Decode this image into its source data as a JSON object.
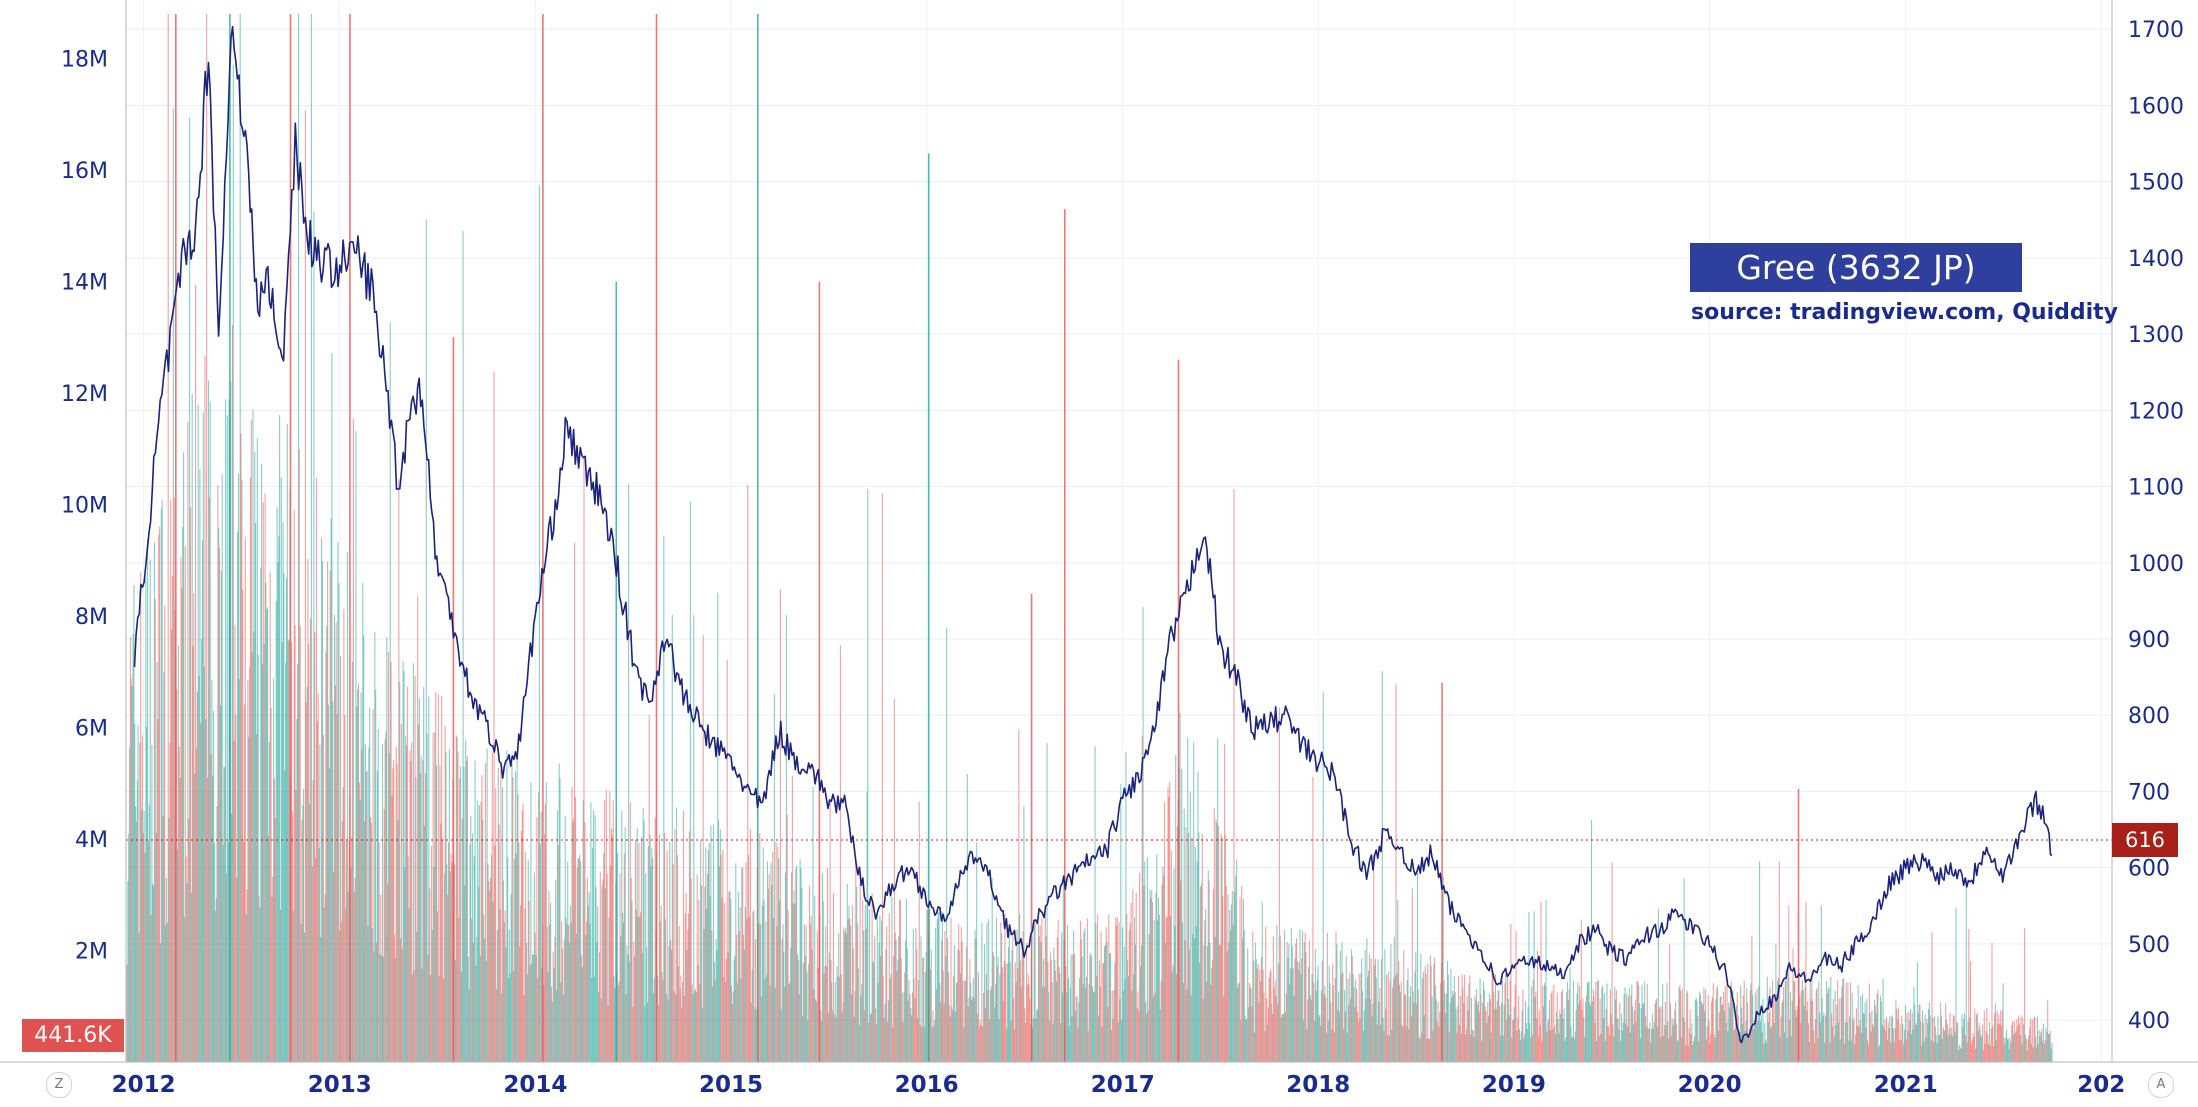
{
  "chart_data": {
    "type": "line",
    "title": "Gree (3632 JP)",
    "subtitle": "source: tradingview.com, Quiddity",
    "x_axis": {
      "type": "date",
      "ticks": [
        "2012",
        "2013",
        "2014",
        "2015",
        "2016",
        "2017",
        "2018",
        "2019",
        "2020",
        "2021",
        "202"
      ]
    },
    "price_axis": {
      "position": "right",
      "range": [
        345,
        1720
      ],
      "ticks": [
        "400",
        "500",
        "600",
        "700",
        "800",
        "900",
        "1000",
        "1100",
        "1200",
        "1300",
        "1400",
        "1500",
        "1600",
        "1700"
      ]
    },
    "volume_axis": {
      "position": "left",
      "range": [
        0,
        18800000
      ],
      "ticks": [
        "2M",
        "4M",
        "6M",
        "8M",
        "10M",
        "12M",
        "14M",
        "16M",
        "18M"
      ]
    },
    "series": [
      {
        "kind": "price",
        "points": [
          [
            "2011-12-15",
            870
          ],
          [
            "2012-02-01",
            1200
          ],
          [
            "2012-03-15",
            1400
          ],
          [
            "2012-04-10",
            1450
          ],
          [
            "2012-05-01",
            1680
          ],
          [
            "2012-05-20",
            1300
          ],
          [
            "2012-06-15",
            1720
          ],
          [
            "2012-07-15",
            1500
          ],
          [
            "2012-08-01",
            1330
          ],
          [
            "2012-08-20",
            1380
          ],
          [
            "2012-09-15",
            1250
          ],
          [
            "2012-10-10",
            1560
          ],
          [
            "2012-11-01",
            1430
          ],
          [
            "2012-12-01",
            1390
          ],
          [
            "2013-01-01",
            1390
          ],
          [
            "2013-02-01",
            1410
          ],
          [
            "2013-03-01",
            1360
          ],
          [
            "2013-04-01",
            1220
          ],
          [
            "2013-04-20",
            1100
          ],
          [
            "2013-05-15",
            1210
          ],
          [
            "2013-06-01",
            1230
          ],
          [
            "2013-07-01",
            1000
          ],
          [
            "2013-08-01",
            920
          ],
          [
            "2013-09-01",
            830
          ],
          [
            "2013-10-01",
            790
          ],
          [
            "2013-11-01",
            730
          ],
          [
            "2013-12-01",
            760
          ],
          [
            "2014-01-01",
            930
          ],
          [
            "2014-02-01",
            1050
          ],
          [
            "2014-03-01",
            1180
          ],
          [
            "2014-04-01",
            1120
          ],
          [
            "2014-05-01",
            1090
          ],
          [
            "2014-06-01",
            1000
          ],
          [
            "2014-07-01",
            880
          ],
          [
            "2014-08-01",
            810
          ],
          [
            "2014-09-01",
            910
          ],
          [
            "2014-10-01",
            830
          ],
          [
            "2014-11-01",
            790
          ],
          [
            "2014-12-01",
            760
          ],
          [
            "2015-01-01",
            740
          ],
          [
            "2015-02-01",
            700
          ],
          [
            "2015-03-01",
            680
          ],
          [
            "2015-04-01",
            780
          ],
          [
            "2015-05-01",
            740
          ],
          [
            "2015-06-01",
            730
          ],
          [
            "2015-07-01",
            690
          ],
          [
            "2015-08-01",
            680
          ],
          [
            "2015-09-01",
            580
          ],
          [
            "2015-10-01",
            540
          ],
          [
            "2015-11-01",
            580
          ],
          [
            "2015-12-01",
            600
          ],
          [
            "2016-01-01",
            560
          ],
          [
            "2016-02-01",
            530
          ],
          [
            "2016-03-01",
            580
          ],
          [
            "2016-04-01",
            620
          ],
          [
            "2016-05-01",
            580
          ],
          [
            "2016-06-01",
            520
          ],
          [
            "2016-07-01",
            490
          ],
          [
            "2016-08-01",
            540
          ],
          [
            "2016-09-01",
            570
          ],
          [
            "2016-10-01",
            590
          ],
          [
            "2016-11-01",
            610
          ],
          [
            "2016-12-01",
            620
          ],
          [
            "2017-01-01",
            690
          ],
          [
            "2017-02-01",
            720
          ],
          [
            "2017-03-01",
            780
          ],
          [
            "2017-04-01",
            900
          ],
          [
            "2017-05-01",
            960
          ],
          [
            "2017-06-01",
            1050
          ],
          [
            "2017-07-01",
            890
          ],
          [
            "2017-08-01",
            850
          ],
          [
            "2017-09-01",
            780
          ],
          [
            "2017-10-01",
            790
          ],
          [
            "2017-11-01",
            800
          ],
          [
            "2017-12-01",
            760
          ],
          [
            "2018-01-01",
            740
          ],
          [
            "2018-02-01",
            720
          ],
          [
            "2018-03-01",
            640
          ],
          [
            "2018-04-01",
            590
          ],
          [
            "2018-05-01",
            640
          ],
          [
            "2018-06-01",
            630
          ],
          [
            "2018-07-01",
            590
          ],
          [
            "2018-08-01",
            620
          ],
          [
            "2018-09-01",
            550
          ],
          [
            "2018-10-01",
            520
          ],
          [
            "2018-11-01",
            490
          ],
          [
            "2018-12-01",
            450
          ],
          [
            "2019-01-01",
            470
          ],
          [
            "2019-02-01",
            480
          ],
          [
            "2019-03-01",
            470
          ],
          [
            "2019-04-01",
            460
          ],
          [
            "2019-05-01",
            500
          ],
          [
            "2019-06-01",
            520
          ],
          [
            "2019-07-01",
            490
          ],
          [
            "2019-08-01",
            480
          ],
          [
            "2019-09-01",
            510
          ],
          [
            "2019-10-01",
            520
          ],
          [
            "2019-11-01",
            540
          ],
          [
            "2019-12-01",
            520
          ],
          [
            "2020-01-01",
            500
          ],
          [
            "2020-02-01",
            460
          ],
          [
            "2020-03-01",
            370
          ],
          [
            "2020-04-01",
            410
          ],
          [
            "2020-05-01",
            430
          ],
          [
            "2020-06-01",
            470
          ],
          [
            "2020-07-01",
            450
          ],
          [
            "2020-08-01",
            480
          ],
          [
            "2020-09-01",
            470
          ],
          [
            "2020-10-01",
            500
          ],
          [
            "2020-11-01",
            530
          ],
          [
            "2020-12-01",
            580
          ],
          [
            "2021-01-01",
            600
          ],
          [
            "2021-02-01",
            610
          ],
          [
            "2021-03-01",
            590
          ],
          [
            "2021-04-01",
            600
          ],
          [
            "2021-05-01",
            580
          ],
          [
            "2021-06-01",
            630
          ],
          [
            "2021-07-01",
            590
          ],
          [
            "2021-08-01",
            640
          ],
          [
            "2021-09-01",
            690
          ],
          [
            "2021-09-20",
            660
          ],
          [
            "2021-10-01",
            616
          ]
        ]
      },
      {
        "kind": "volume",
        "regimes": [
          [
            "2011-12-01",
            5000000
          ],
          [
            "2012-06-01",
            8000000
          ],
          [
            "2013-01-01",
            5500000
          ],
          [
            "2013-06-01",
            4000000
          ],
          [
            "2014-01-01",
            3000000
          ],
          [
            "2015-01-01",
            2500000
          ],
          [
            "2015-07-01",
            2000000
          ],
          [
            "2016-01-01",
            1600000
          ],
          [
            "2017-01-01",
            1500000
          ],
          [
            "2017-05-01",
            3500000
          ],
          [
            "2017-09-01",
            1500000
          ],
          [
            "2018-01-01",
            1400000
          ],
          [
            "2019-01-01",
            900000
          ],
          [
            "2020-01-01",
            800000
          ],
          [
            "2020-06-01",
            1000000
          ],
          [
            "2021-01-01",
            700000
          ],
          [
            "2021-10-01",
            441600
          ]
        ],
        "spikes": [
          [
            "2012-03-01",
            18800000,
            "down"
          ],
          [
            "2012-06-10",
            18800000,
            "up"
          ],
          [
            "2012-10-01",
            18800000,
            "down"
          ],
          [
            "2013-01-20",
            18800000,
            "down"
          ],
          [
            "2013-08-01",
            13000000,
            "down"
          ],
          [
            "2014-01-15",
            18800000,
            "down"
          ],
          [
            "2014-06-01",
            14000000,
            "up"
          ],
          [
            "2014-08-15",
            18800000,
            "down"
          ],
          [
            "2015-02-20",
            18800000,
            "up"
          ],
          [
            "2015-06-15",
            14000000,
            "down"
          ],
          [
            "2016-01-05",
            16300000,
            "up"
          ],
          [
            "2016-07-15",
            8400000,
            "down"
          ],
          [
            "2016-09-15",
            15300000,
            "down"
          ],
          [
            "2017-04-15",
            12600000,
            "down"
          ],
          [
            "2018-08-20",
            6800000,
            "down"
          ],
          [
            "2020-06-15",
            4900000,
            "down"
          ]
        ]
      }
    ],
    "last_price": "616",
    "last_volume": "441.6K",
    "colors": {
      "up": "#26a69a",
      "down": "#ef5350",
      "price_line": "#1a237e",
      "text": "#1a2b8f"
    },
    "grid": true
  },
  "ui": {
    "corner_left": "Z",
    "corner_right": "A"
  }
}
